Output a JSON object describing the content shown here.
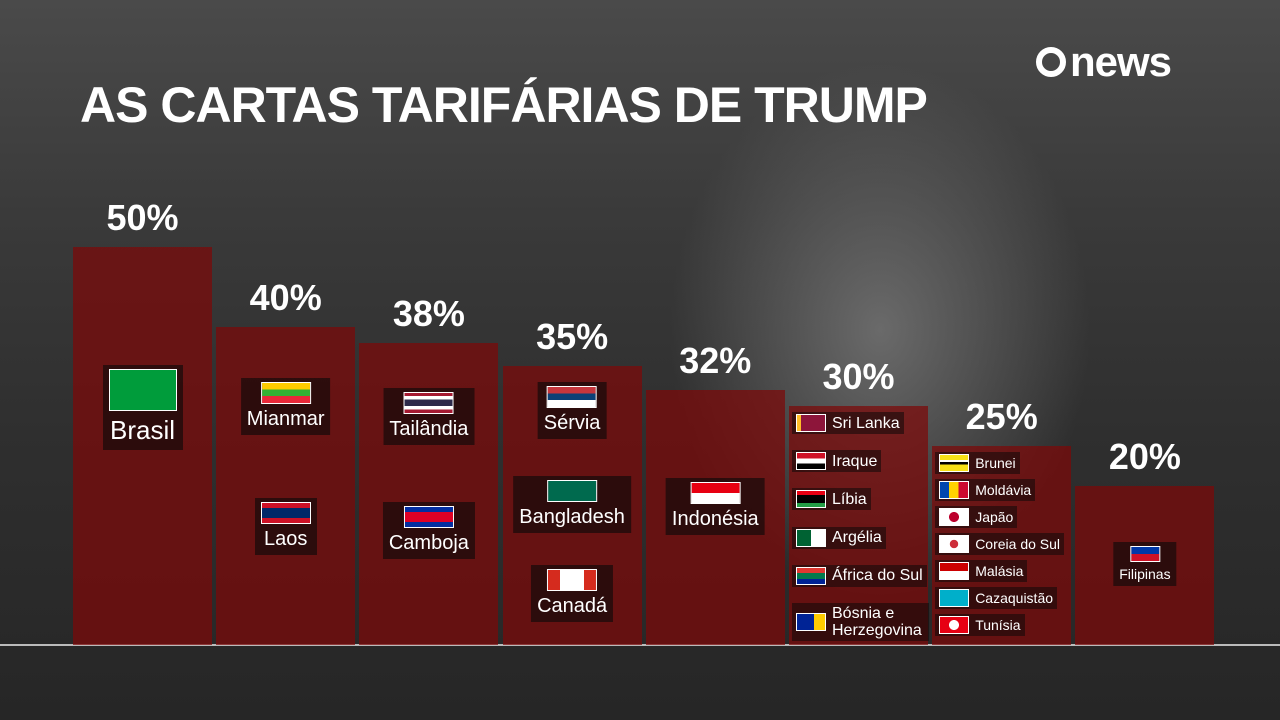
{
  "chart_data": {
    "type": "bar",
    "title": "AS CARTAS TARIFÁRIAS DE TRUMP",
    "logo": "news",
    "values": [
      50,
      40,
      38,
      35,
      32,
      30,
      25,
      20
    ],
    "value_labels": [
      "50%",
      "40%",
      "38%",
      "35%",
      "32%",
      "30%",
      "25%",
      "20%"
    ],
    "countries": [
      [
        "Brasil"
      ],
      [
        "Mianmar",
        "Laos"
      ],
      [
        "Tailândia",
        "Camboja"
      ],
      [
        "Sérvia",
        "Bangladesh",
        "Canadá"
      ],
      [
        "Indonésia"
      ],
      [
        "Sri Lanka",
        "Iraque",
        "Líbia",
        "Argélia",
        "África do Sul",
        "Bósnia e Herzegovina"
      ],
      [
        "Brunei",
        "Moldávia",
        "Japão",
        "Coreia do Sul",
        "Malásia",
        "Cazaquistão",
        "Tunísia"
      ],
      [
        "Filipinas"
      ]
    ],
    "color": "rgba(125,8,8,0.72)",
    "ylim": [
      0,
      50
    ]
  }
}
